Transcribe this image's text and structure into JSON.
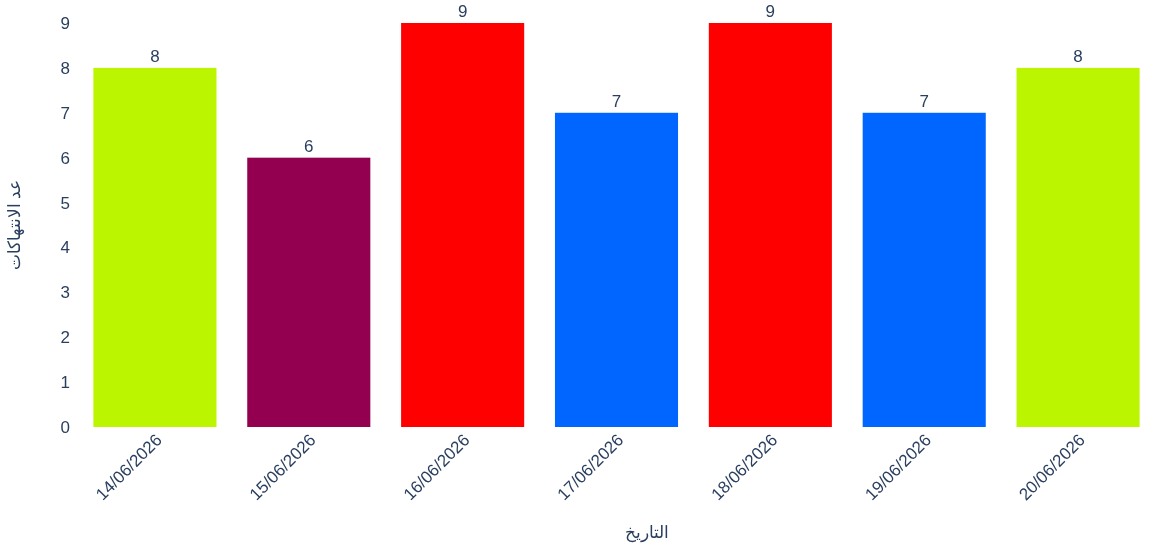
{
  "chart_data": {
    "type": "bar",
    "xlabel": "التاريخ",
    "ylabel": "عد الانتهاكات",
    "categories": [
      "14/06/2026",
      "15/06/2026",
      "16/06/2026",
      "17/06/2026",
      "18/06/2026",
      "19/06/2026",
      "20/06/2026"
    ],
    "values": [
      8,
      6,
      9,
      7,
      9,
      7,
      8
    ],
    "colors": [
      "#bbf500",
      "#930050",
      "#ff0000",
      "#0066ff",
      "#ff0000",
      "#0066ff",
      "#bbf500"
    ],
    "ylim": [
      0,
      9
    ],
    "yticks": [
      0,
      1,
      2,
      3,
      4,
      5,
      6,
      7,
      8,
      9
    ],
    "data_labels": true
  }
}
